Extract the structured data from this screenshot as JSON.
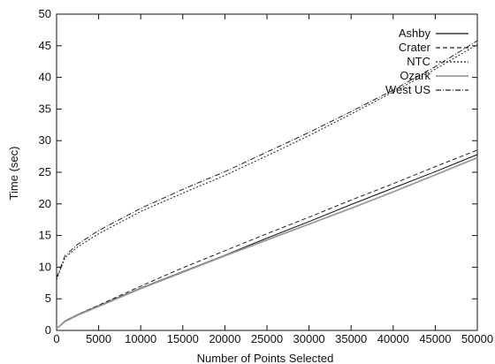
{
  "chart_data": {
    "type": "line",
    "title": "",
    "xlabel": "Number of Points Selected",
    "ylabel": "Time (sec)",
    "xlim": [
      0,
      50000
    ],
    "ylim": [
      0,
      50
    ],
    "xticks": [
      "0",
      "5000",
      "10000",
      "15000",
      "20000",
      "25000",
      "30000",
      "35000",
      "40000",
      "45000",
      "50000"
    ],
    "yticks": [
      "0",
      "5",
      "10",
      "15",
      "20",
      "25",
      "30",
      "35",
      "40",
      "45",
      "50"
    ],
    "grid": false,
    "legend_position": "top-right",
    "x": [
      0,
      1000,
      2500,
      5000,
      10000,
      15000,
      20000,
      25000,
      30000,
      35000,
      40000,
      45000,
      50000
    ],
    "series": [
      {
        "name": "Ashby",
        "style": "solid",
        "color": "#111111",
        "values": [
          0.3,
          1.5,
          2.5,
          3.9,
          6.7,
          9.3,
          11.9,
          14.6,
          17.2,
          19.9,
          22.5,
          25.1,
          27.8
        ]
      },
      {
        "name": "Crater",
        "style": "dashed",
        "color": "#222222",
        "values": [
          0.3,
          1.5,
          2.5,
          4.0,
          7.0,
          9.9,
          12.6,
          15.3,
          17.9,
          20.6,
          23.2,
          25.9,
          28.5
        ]
      },
      {
        "name": "NTC",
        "style": "dotted",
        "color": "#222222",
        "values": [
          8.0,
          11.5,
          13.2,
          15.3,
          18.8,
          21.7,
          24.5,
          27.6,
          30.8,
          34.2,
          37.7,
          41.3,
          45.2
        ]
      },
      {
        "name": "Ozark",
        "style": "solid",
        "color": "#9a9a9a",
        "values": [
          0.3,
          1.4,
          2.4,
          3.8,
          6.6,
          9.2,
          11.8,
          14.3,
          16.8,
          19.3,
          21.9,
          24.6,
          27.3
        ]
      },
      {
        "name": "West US",
        "style": "dashdot",
        "color": "#222222",
        "values": [
          8.3,
          11.8,
          13.6,
          15.8,
          19.3,
          22.3,
          25.1,
          28.2,
          31.3,
          34.6,
          38.0,
          41.7,
          45.8
        ]
      }
    ]
  }
}
